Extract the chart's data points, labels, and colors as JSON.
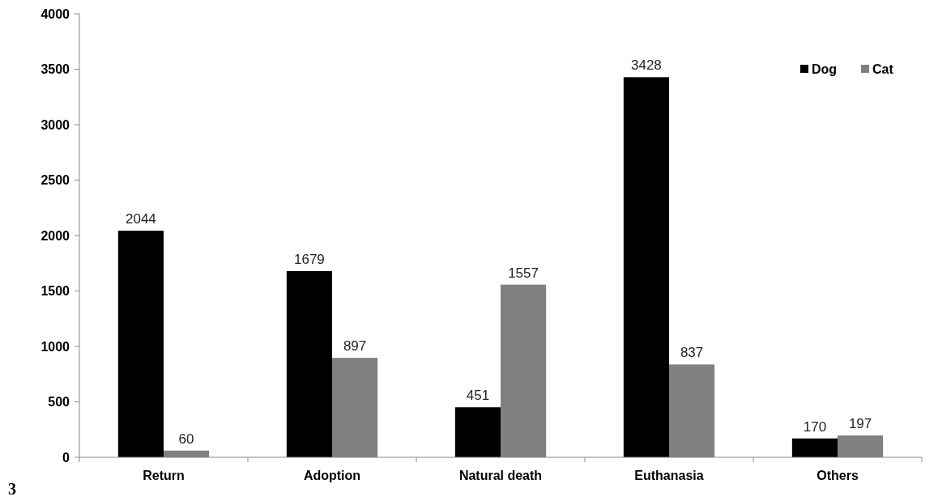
{
  "chart_data": {
    "type": "bar",
    "categories": [
      "Return",
      "Adoption",
      "Natural death",
      "Euthanasia",
      "Others"
    ],
    "series": [
      {
        "name": "Dog",
        "color": "#000000",
        "values": [
          2044,
          1679,
          451,
          3428,
          170
        ]
      },
      {
        "name": "Cat",
        "color": "#808080",
        "values": [
          60,
          897,
          1557,
          837,
          197
        ]
      }
    ],
    "ylim": [
      0,
      4000
    ],
    "yticks": [
      0,
      500,
      1000,
      1500,
      2000,
      2500,
      3000,
      3500,
      4000
    ],
    "grid": false,
    "legend": "top right",
    "data_labels": true,
    "annotations": [
      "3"
    ]
  }
}
